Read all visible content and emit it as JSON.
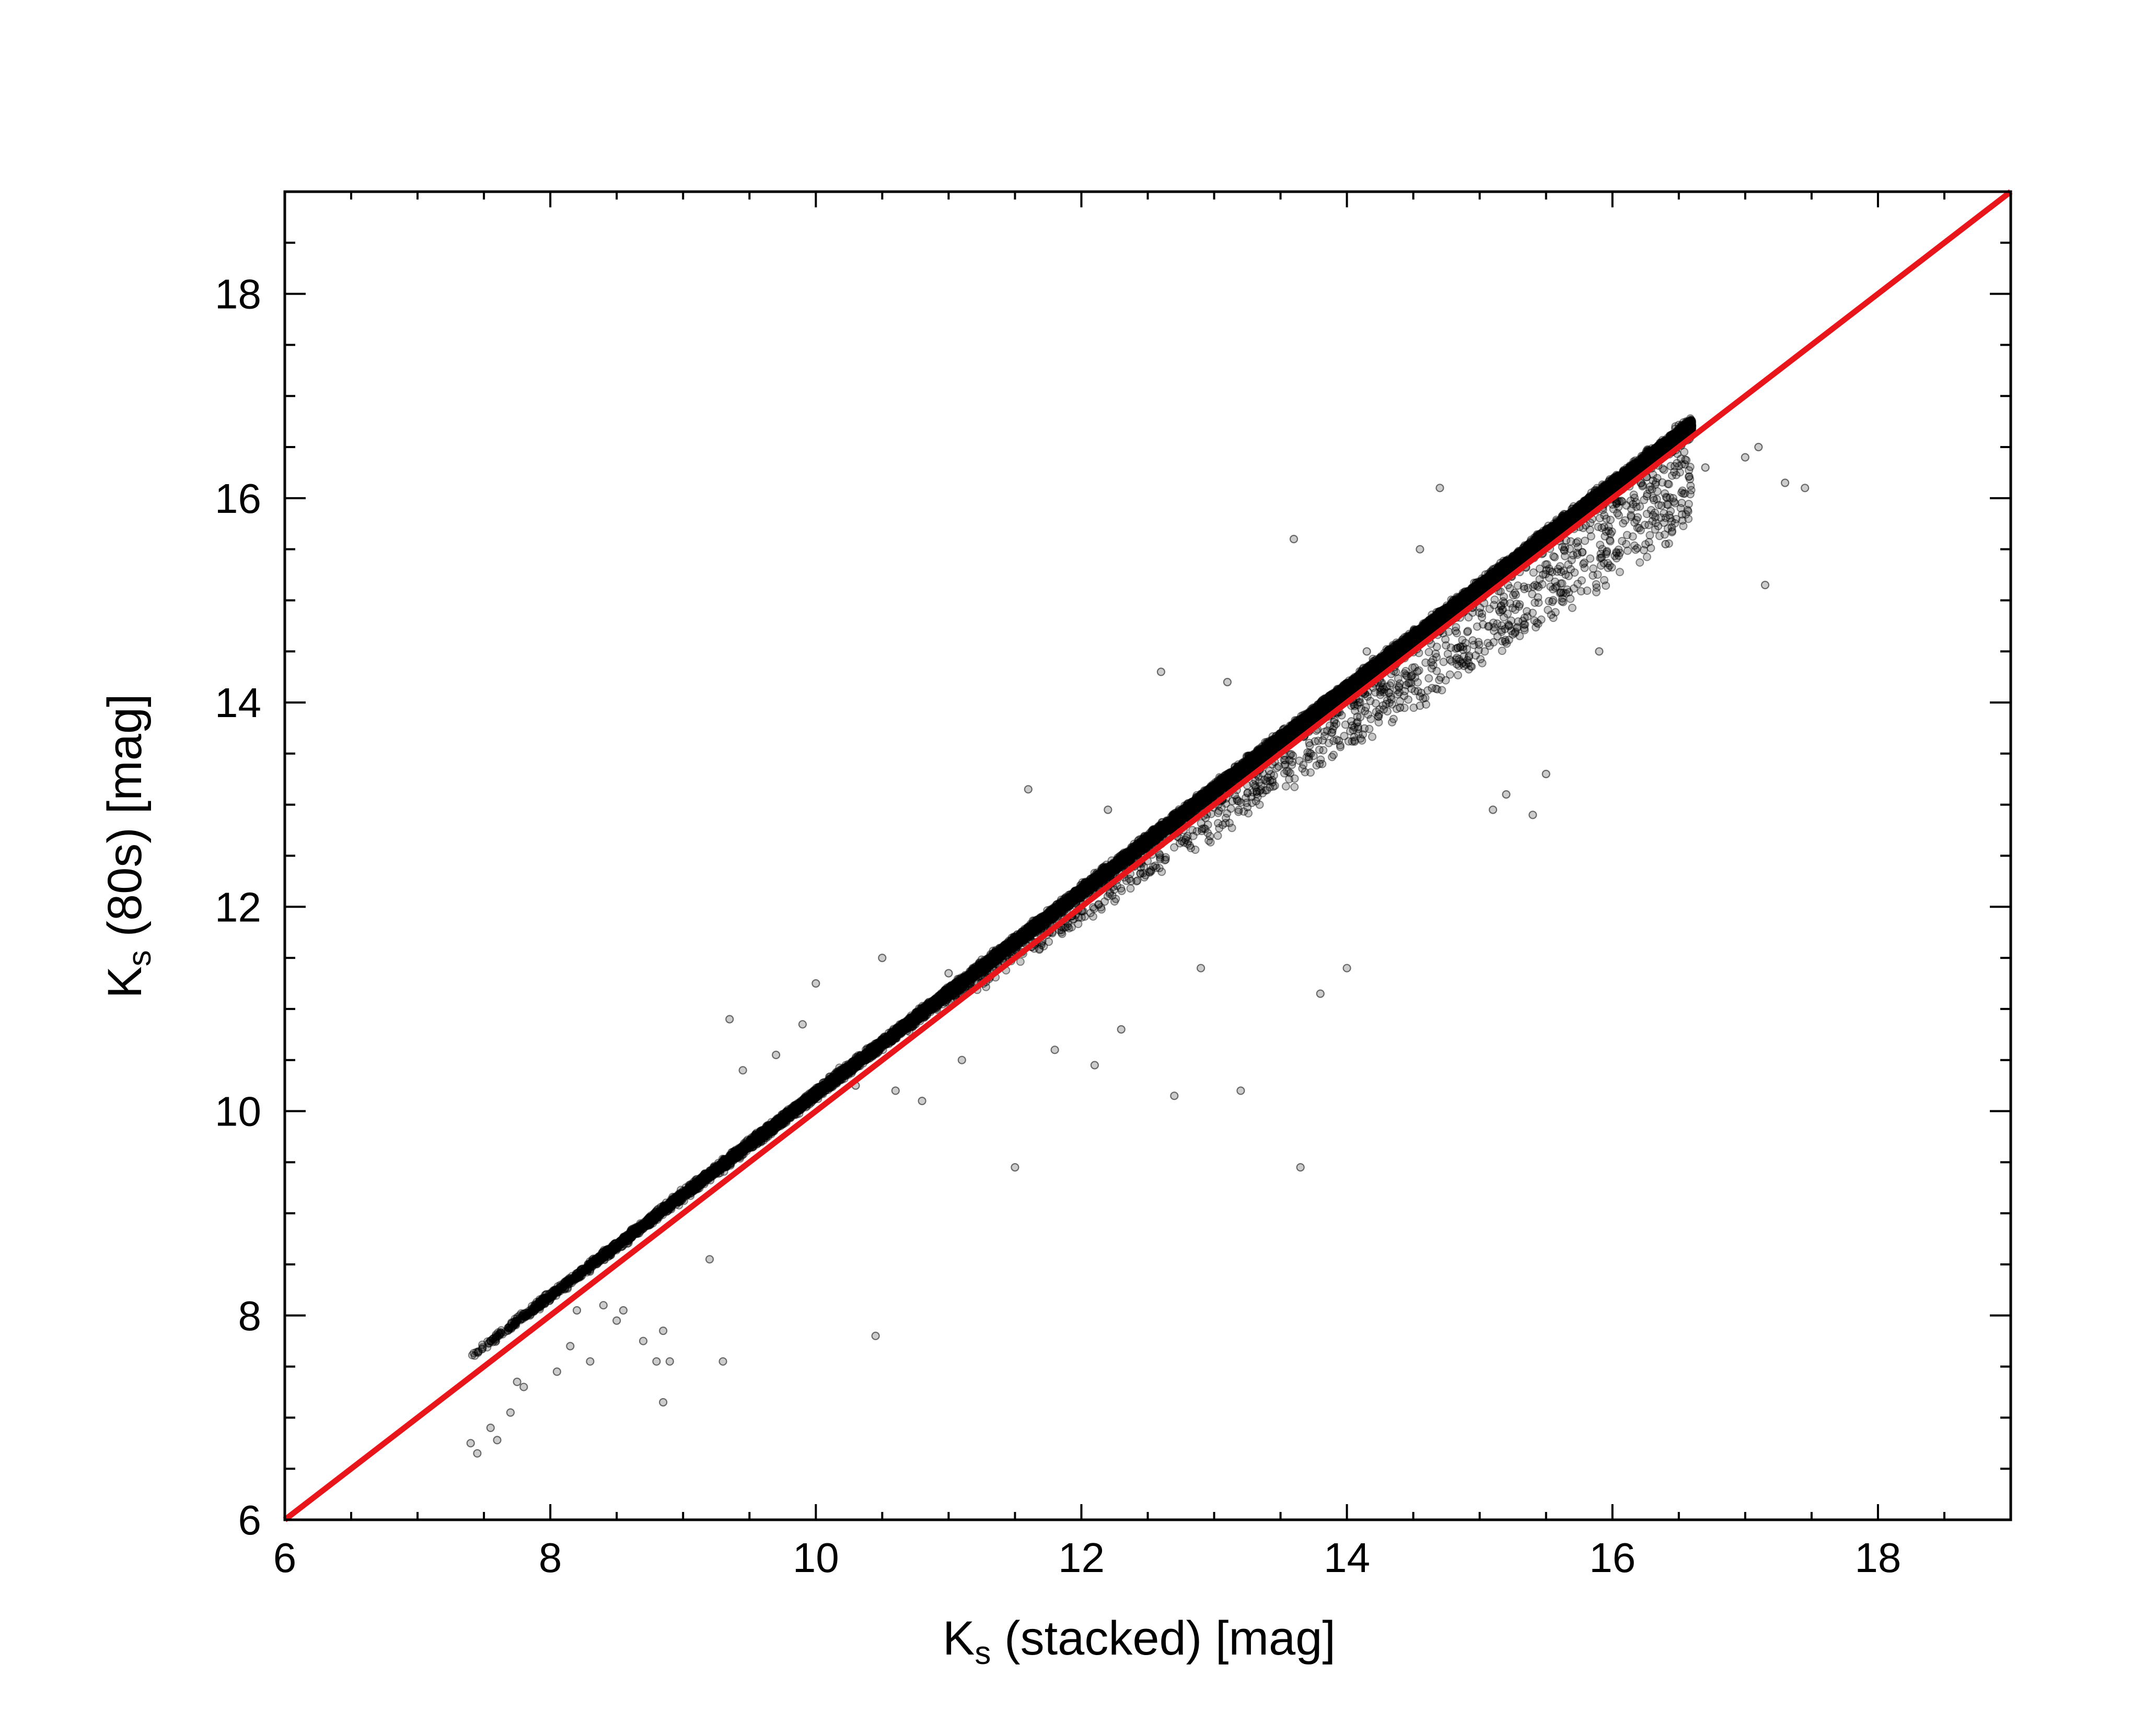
{
  "chart_data": {
    "type": "scatter",
    "title": "",
    "xlabel": {
      "main": "K",
      "sub": "s",
      "rest": " (stacked) [mag]"
    },
    "ylabel": {
      "main": "K",
      "sub": "s",
      "rest": " (80s) [mag]"
    },
    "xlim": [
      6,
      19
    ],
    "ylim": [
      6,
      19
    ],
    "x_ticks": [
      6,
      8,
      10,
      12,
      14,
      16,
      18
    ],
    "y_ticks": [
      6,
      8,
      10,
      12,
      14,
      16,
      18
    ],
    "x_tick_labels": [
      "6",
      "8",
      "10",
      "12",
      "14",
      "16",
      "18"
    ],
    "y_tick_labels": [
      "6",
      "8",
      "10",
      "12",
      "14",
      "16",
      "18"
    ],
    "minor_tick_step": 0.5,
    "grid": false,
    "colors": {
      "points": "#000000",
      "reference_line": "#e8151b",
      "axes": "#000000"
    },
    "reference_line": {
      "x": [
        6,
        19
      ],
      "y": [
        6,
        19
      ]
    },
    "dense_band": {
      "x_range": [
        7.4,
        16.6
      ],
      "upper_offset": 0.28,
      "lower_offset": -0.35,
      "point_count": 26000
    },
    "series": [
      {
        "points": [
          [
            7.4,
            6.75
          ],
          [
            7.45,
            6.65
          ],
          [
            7.55,
            6.9
          ],
          [
            7.6,
            6.78
          ],
          [
            7.7,
            7.05
          ],
          [
            7.75,
            7.35
          ],
          [
            7.8,
            7.3
          ],
          [
            8.05,
            7.45
          ],
          [
            8.15,
            7.7
          ],
          [
            8.2,
            8.05
          ],
          [
            8.3,
            7.55
          ],
          [
            8.4,
            8.1
          ],
          [
            8.5,
            7.95
          ],
          [
            8.55,
            8.05
          ],
          [
            8.7,
            7.75
          ],
          [
            8.8,
            7.55
          ],
          [
            8.85,
            7.15
          ],
          [
            8.9,
            7.55
          ],
          [
            8.85,
            7.85
          ],
          [
            9.3,
            7.55
          ],
          [
            9.2,
            8.55
          ],
          [
            9.35,
            10.9
          ],
          [
            9.45,
            10.4
          ],
          [
            9.7,
            10.55
          ],
          [
            9.9,
            10.85
          ],
          [
            10.0,
            11.25
          ],
          [
            10.3,
            10.25
          ],
          [
            10.45,
            7.8
          ],
          [
            10.5,
            11.5
          ],
          [
            10.6,
            10.2
          ],
          [
            10.8,
            10.1
          ],
          [
            11.0,
            11.35
          ],
          [
            11.1,
            10.5
          ],
          [
            11.5,
            9.45
          ],
          [
            11.8,
            10.6
          ],
          [
            12.1,
            10.45
          ],
          [
            12.3,
            10.8
          ],
          [
            12.6,
            14.3
          ],
          [
            12.7,
            10.15
          ],
          [
            12.9,
            11.4
          ],
          [
            13.2,
            10.2
          ],
          [
            13.6,
            15.6
          ],
          [
            13.65,
            9.45
          ],
          [
            13.8,
            11.15
          ],
          [
            14.0,
            11.4
          ],
          [
            14.15,
            14.5
          ],
          [
            14.4,
            13.95
          ],
          [
            14.55,
            15.5
          ],
          [
            14.7,
            16.1
          ],
          [
            15.1,
            12.95
          ],
          [
            15.2,
            13.1
          ],
          [
            15.5,
            13.3
          ],
          [
            15.4,
            12.9
          ],
          [
            15.9,
            14.5
          ],
          [
            16.4,
            15.55
          ],
          [
            16.7,
            16.3
          ],
          [
            17.0,
            16.4
          ],
          [
            17.1,
            16.5
          ],
          [
            17.15,
            15.15
          ],
          [
            17.3,
            16.15
          ],
          [
            17.45,
            16.1
          ],
          [
            11.6,
            13.15
          ],
          [
            12.2,
            12.95
          ],
          [
            13.1,
            14.2
          ]
        ]
      }
    ]
  }
}
